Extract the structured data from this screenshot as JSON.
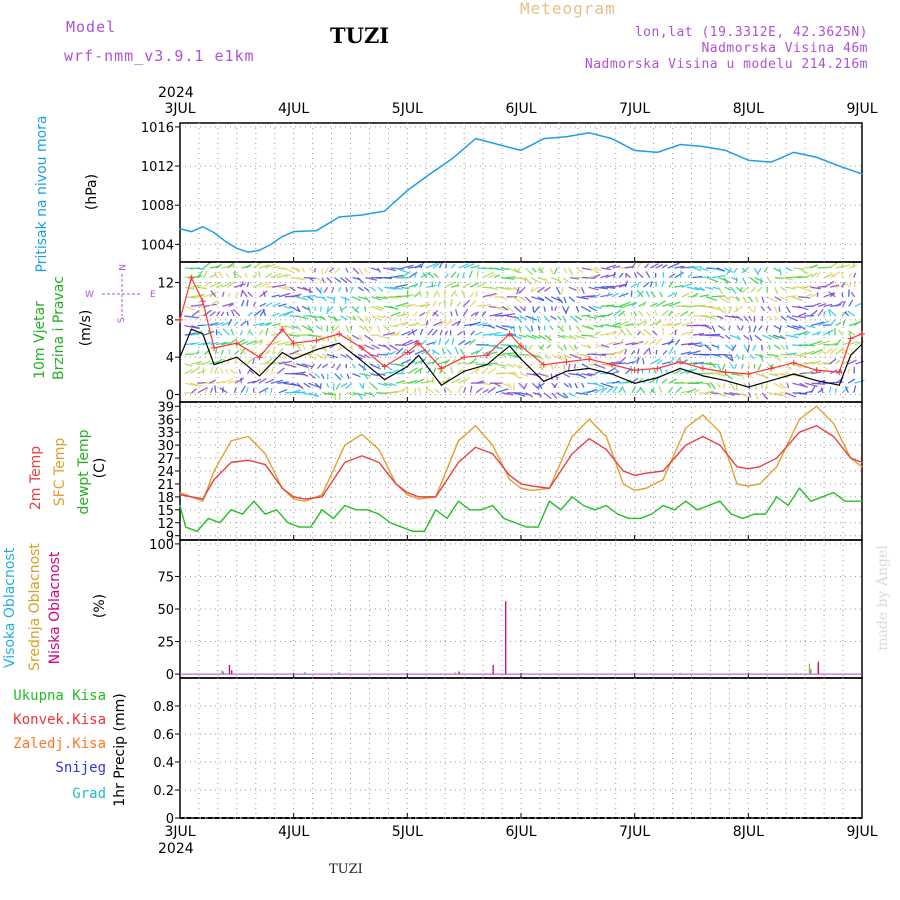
{
  "header": {
    "model_label": "Model",
    "model_name": "wrf-nmm_v3.9.1  e1km",
    "station": "TUZI",
    "product": "Meteogram",
    "lonlat": "lon,lat (19.3312E, 42.3625N)",
    "altitude": "Nadmorska Visina 46m",
    "model_altitude": "Nadmorska Visina u modelu 214.216m",
    "footer_station": "TUZI",
    "credit": "made by Angel"
  },
  "colors": {
    "pressure": "#1e9ee8",
    "wind_line": "#000000",
    "gust": "#ff3333",
    "temp2m": "#e84040",
    "sfc": "#e0a030",
    "dewpt": "#22c022",
    "high_cloud": "#20b0e0",
    "mid_cloud": "#d8a020",
    "low_cloud": "#d00080",
    "total_precip": "#22bb22",
    "conv_precip": "#ee3333",
    "frz_precip": "#ff7722",
    "snow": "#3333dd",
    "hail": "#22bbbb"
  },
  "chart_data": [
    {
      "type": "line",
      "panel": "pressure",
      "year": "2024",
      "x_ticks": [
        "3JUL",
        "4JUL",
        "5JUL",
        "6JUL",
        "7JUL",
        "8JUL",
        "9JUL"
      ],
      "ylabel_left": "Pritisak na nivou mora",
      "unit": "(hPa)",
      "ylim": [
        1002.2,
        1016.4
      ],
      "yticks": [
        1004,
        1008,
        1012,
        1016
      ],
      "grid": true,
      "series": [
        {
          "x": [
            0,
            0.1,
            0.2,
            0.3,
            0.4,
            0.5,
            0.6,
            0.7,
            0.8,
            0.9,
            1.0,
            1.2,
            1.4,
            1.6,
            1.8,
            2.0,
            2.2,
            2.4,
            2.6,
            2.8,
            3.0,
            3.2,
            3.4,
            3.6,
            3.8,
            4.0,
            4.2,
            4.4,
            4.6,
            4.8,
            5.0,
            5.2,
            5.4,
            5.6,
            5.8,
            6.0
          ],
          "values": [
            1005.6,
            1005.3,
            1005.8,
            1005.2,
            1004.3,
            1003.6,
            1003.2,
            1003.4,
            1004.0,
            1004.8,
            1005.3,
            1005.4,
            1006.8,
            1007.0,
            1007.4,
            1009.5,
            1011.2,
            1012.8,
            1014.8,
            1014.2,
            1013.6,
            1014.8,
            1015.0,
            1015.4,
            1014.8,
            1013.6,
            1013.4,
            1014.2,
            1014.0,
            1013.6,
            1012.6,
            1012.4,
            1013.4,
            1012.9,
            1012.0,
            1011.2
          ]
        }
      ]
    },
    {
      "type": "line",
      "panel": "wind",
      "ylabel_left": "10m Vjetar",
      "ylabel_left2": "Brzina i Pravac",
      "unit": "(m/s)",
      "ylim": [
        -0.8,
        14.2
      ],
      "yticks": [
        0,
        4,
        8,
        12
      ],
      "grid": true,
      "compass": {
        "w": "W",
        "e": "E",
        "n": "N",
        "s": "S"
      },
      "series": [
        {
          "name": "speed",
          "x": [
            0,
            0.1,
            0.2,
            0.3,
            0.5,
            0.7,
            0.9,
            1.0,
            1.2,
            1.4,
            1.6,
            1.8,
            2.0,
            2.1,
            2.3,
            2.5,
            2.7,
            2.9,
            3.0,
            3.2,
            3.4,
            3.6,
            3.8,
            4.0,
            4.2,
            4.4,
            4.6,
            4.8,
            5.0,
            5.2,
            5.4,
            5.6,
            5.8,
            5.9,
            6.0
          ],
          "values": [
            4.0,
            7.0,
            6.5,
            3.2,
            4.0,
            2.0,
            4.5,
            3.8,
            4.8,
            5.5,
            3.6,
            1.6,
            3.0,
            4.2,
            1.0,
            2.5,
            3.2,
            5.2,
            3.8,
            1.4,
            2.5,
            2.8,
            2.2,
            1.2,
            1.8,
            2.8,
            2.0,
            1.5,
            0.8,
            1.5,
            2.2,
            1.5,
            1.0,
            4.2,
            5.4
          ]
        },
        {
          "name": "gust",
          "x": [
            0,
            0.1,
            0.2,
            0.3,
            0.5,
            0.7,
            0.9,
            1.0,
            1.2,
            1.4,
            1.6,
            1.8,
            2.0,
            2.1,
            2.3,
            2.5,
            2.7,
            2.9,
            3.0,
            3.2,
            3.4,
            3.6,
            3.8,
            4.0,
            4.2,
            4.4,
            4.6,
            4.8,
            5.0,
            5.2,
            5.4,
            5.6,
            5.8,
            5.9,
            6.0
          ],
          "values": [
            8.0,
            12.5,
            10.0,
            5.0,
            5.5,
            4.0,
            7.0,
            5.5,
            5.8,
            6.5,
            5.0,
            3.0,
            4.5,
            5.5,
            2.8,
            4.0,
            4.2,
            6.5,
            5.2,
            3.2,
            3.5,
            3.8,
            3.2,
            2.6,
            2.8,
            3.5,
            2.8,
            2.4,
            2.2,
            2.8,
            3.4,
            2.6,
            2.4,
            6.0,
            6.5
          ]
        }
      ]
    },
    {
      "type": "line",
      "panel": "temperature",
      "ylabel_left": "2m Temp",
      "ylabel_left2": "SFC Temp",
      "ylabel_left3": "dewpt Temp",
      "unit": "(C)",
      "ylim": [
        8,
        40
      ],
      "yticks": [
        9,
        12,
        15,
        18,
        21,
        24,
        27,
        30,
        33,
        36,
        39
      ],
      "grid": true,
      "series": [
        {
          "name": "2m Temp",
          "x": [
            0,
            0.1,
            0.2,
            0.3,
            0.45,
            0.6,
            0.75,
            0.9,
            1.0,
            1.1,
            1.25,
            1.45,
            1.6,
            1.75,
            1.9,
            2.0,
            2.1,
            2.25,
            2.45,
            2.6,
            2.75,
            2.9,
            3.0,
            3.1,
            3.25,
            3.45,
            3.6,
            3.75,
            3.9,
            4.0,
            4.1,
            4.25,
            4.45,
            4.6,
            4.75,
            4.9,
            5.0,
            5.1,
            5.25,
            5.45,
            5.6,
            5.75,
            5.9,
            6.0
          ],
          "values": [
            18.5,
            18,
            17.5,
            22,
            26,
            26.5,
            25.5,
            20,
            18,
            17.5,
            18,
            26,
            27.5,
            26,
            21,
            19,
            18,
            18,
            26,
            29.5,
            28,
            23,
            21,
            20.5,
            20,
            28,
            31.5,
            29,
            24,
            23,
            23.5,
            24,
            30,
            32,
            30,
            25,
            24.5,
            25,
            27,
            33,
            34.5,
            32,
            27,
            26
          ]
        },
        {
          "name": "SFC Temp",
          "x": [
            0,
            0.1,
            0.2,
            0.3,
            0.45,
            0.6,
            0.75,
            0.9,
            1.0,
            1.1,
            1.25,
            1.45,
            1.6,
            1.75,
            1.9,
            2.0,
            2.1,
            2.25,
            2.45,
            2.6,
            2.75,
            2.9,
            3.0,
            3.1,
            3.25,
            3.45,
            3.6,
            3.75,
            3.9,
            4.0,
            4.1,
            4.25,
            4.45,
            4.6,
            4.75,
            4.9,
            5.0,
            5.1,
            5.25,
            5.45,
            5.6,
            5.75,
            5.9,
            6.0
          ],
          "values": [
            19,
            18,
            17,
            24,
            31,
            32,
            28,
            20,
            17.5,
            17,
            18.5,
            30,
            32.5,
            29,
            21,
            18.5,
            17.5,
            18,
            31,
            34.5,
            30,
            22,
            20,
            19.5,
            20,
            32,
            36,
            32,
            21,
            19.5,
            20,
            22,
            34,
            37,
            33,
            21,
            20.5,
            21,
            25,
            36,
            39,
            35,
            27,
            25
          ]
        },
        {
          "name": "dewpt Temp",
          "x": [
            0,
            0.05,
            0.15,
            0.25,
            0.35,
            0.45,
            0.55,
            0.65,
            0.75,
            0.85,
            0.95,
            1.05,
            1.15,
            1.25,
            1.35,
            1.45,
            1.55,
            1.65,
            1.75,
            1.85,
            1.95,
            2.05,
            2.15,
            2.25,
            2.35,
            2.45,
            2.55,
            2.65,
            2.75,
            2.85,
            2.95,
            3.05,
            3.15,
            3.25,
            3.35,
            3.45,
            3.55,
            3.65,
            3.75,
            3.85,
            3.95,
            4.05,
            4.15,
            4.25,
            4.35,
            4.45,
            4.55,
            4.65,
            4.75,
            4.85,
            4.95,
            5.05,
            5.15,
            5.25,
            5.35,
            5.45,
            5.55,
            5.65,
            5.75,
            5.85,
            5.95,
            6.0
          ],
          "values": [
            16,
            11,
            10,
            13,
            12,
            15,
            14,
            17,
            14,
            15,
            12,
            11,
            11,
            15,
            13,
            16,
            15,
            15,
            14,
            12,
            11,
            10,
            10,
            15,
            13,
            17,
            15,
            15,
            16,
            13,
            12,
            11,
            11,
            17,
            15,
            18,
            16,
            15,
            16,
            14,
            13,
            13,
            14,
            16,
            15,
            17,
            15,
            16,
            17,
            14,
            13,
            14,
            14,
            18,
            16,
            20,
            17,
            18,
            19,
            17,
            17,
            17
          ]
        }
      ]
    },
    {
      "type": "bar",
      "panel": "cloud",
      "ylabel_left": "Visoka Oblacnost",
      "ylabel_left2": "Srednja Oblacnost",
      "ylabel_left3": "Niska Oblacnost",
      "unit": "(%)",
      "ylim": [
        -3,
        103
      ],
      "yticks": [
        0,
        25,
        50,
        75,
        100
      ],
      "grid": true,
      "series": [
        {
          "name": "Visoka Oblacnost",
          "x": [
            0.38,
            1.1,
            1.4,
            4.4,
            5.55
          ],
          "values": [
            2,
            1.5,
            1.5,
            1,
            4
          ]
        },
        {
          "name": "Srednja Oblacnost",
          "x": [
            0.35,
            2.4,
            5.4,
            5.52,
            5.6
          ],
          "values": [
            3,
            1.5,
            1,
            8,
            10
          ]
        },
        {
          "name": "Niska Oblacnost",
          "x": [
            0.4,
            0.42,
            2.42,
            2.72,
            2.83,
            5.58
          ],
          "values": [
            7,
            3,
            2,
            7,
            56,
            9
          ]
        }
      ]
    },
    {
      "type": "bar",
      "panel": "precip",
      "legend": [
        "Ukupna Kisa",
        "Konvek.Kisa",
        "Zaledj.Kisa",
        "Snijeg",
        "Grad"
      ],
      "unit": "1hr Precip (mm)",
      "ylim": [
        0,
        1.0
      ],
      "yticks": [
        0,
        0.2,
        0.4,
        0.6,
        0.8
      ],
      "grid": true,
      "series": []
    }
  ]
}
